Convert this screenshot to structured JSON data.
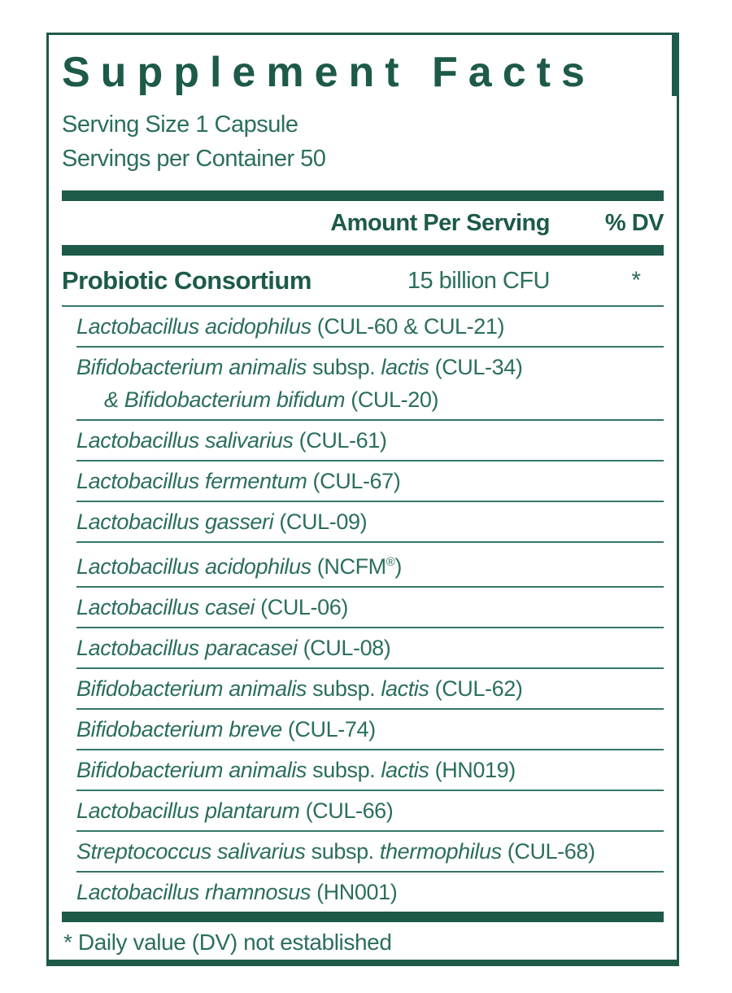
{
  "colors": {
    "deep_green": "#1d5a4a",
    "body_green": "#2b6e5e",
    "rule_green": "#35766a",
    "background": "#ffffff"
  },
  "label": {
    "title": "Supplement Facts",
    "serving_size": "Serving Size 1 Capsule",
    "servings_per_container": "Servings per Container 50",
    "columns": {
      "amount": "Amount Per Serving",
      "dv": "% DV"
    },
    "main_row": {
      "name": "Probiotic Consortium",
      "amount": "15 billion CFU",
      "dv": "*"
    },
    "ingredients": [
      {
        "lines": [
          [
            {
              "t": "Lactobacillus acidophilus",
              "s": "i"
            },
            {
              "t": " (CUL-60 & CUL-21)",
              "s": "r"
            }
          ]
        ]
      },
      {
        "lines": [
          [
            {
              "t": "Bifidobacterium animalis",
              "s": "i"
            },
            {
              "t": " subsp. ",
              "s": "r"
            },
            {
              "t": "lactis",
              "s": "i"
            },
            {
              "t": " (CUL-34)",
              "s": "r"
            }
          ],
          [
            {
              "t": "& Bifidobacterium bifidum",
              "s": "i"
            },
            {
              "t": " (CUL-20)",
              "s": "r"
            }
          ]
        ]
      },
      {
        "lines": [
          [
            {
              "t": "Lactobacillus salivarius",
              "s": "i"
            },
            {
              "t": " (CUL-61)",
              "s": "r"
            }
          ]
        ]
      },
      {
        "lines": [
          [
            {
              "t": "Lactobacillus fermentum",
              "s": "i"
            },
            {
              "t": " (CUL-67)",
              "s": "r"
            }
          ]
        ]
      },
      {
        "lines": [
          [
            {
              "t": "Lactobacillus gasseri",
              "s": "i"
            },
            {
              "t": " (CUL-09)",
              "s": "r"
            }
          ]
        ]
      },
      {
        "lines": [
          [
            {
              "t": "Lactobacillus acidophilus",
              "s": "i"
            },
            {
              "t": " (NCFM",
              "s": "r"
            },
            {
              "t": "®",
              "s": "sup"
            },
            {
              "t": ")",
              "s": "r"
            }
          ]
        ]
      },
      {
        "lines": [
          [
            {
              "t": "Lactobacillus casei",
              "s": "i"
            },
            {
              "t": " (CUL-06)",
              "s": "r"
            }
          ]
        ]
      },
      {
        "lines": [
          [
            {
              "t": "Lactobacillus paracasei",
              "s": "i"
            },
            {
              "t": " (CUL-08)",
              "s": "r"
            }
          ]
        ]
      },
      {
        "lines": [
          [
            {
              "t": "Bifidobacterium animalis",
              "s": "i"
            },
            {
              "t": " subsp. ",
              "s": "r"
            },
            {
              "t": "lactis",
              "s": "i"
            },
            {
              "t": " (CUL-62)",
              "s": "r"
            }
          ]
        ]
      },
      {
        "lines": [
          [
            {
              "t": "Bifidobacterium breve",
              "s": "i"
            },
            {
              "t": " (CUL-74)",
              "s": "r"
            }
          ]
        ]
      },
      {
        "lines": [
          [
            {
              "t": "Bifidobacterium animalis",
              "s": "i"
            },
            {
              "t": " subsp. ",
              "s": "r"
            },
            {
              "t": "lactis",
              "s": "i"
            },
            {
              "t": " (HN019)",
              "s": "r"
            }
          ]
        ]
      },
      {
        "lines": [
          [
            {
              "t": "Lactobacillus plantarum",
              "s": "i"
            },
            {
              "t": " (CUL-66)",
              "s": "r"
            }
          ]
        ]
      },
      {
        "lines": [
          [
            {
              "t": "Streptococcus salivarius",
              "s": "i"
            },
            {
              "t": " subsp. ",
              "s": "r"
            },
            {
              "t": "thermophilus",
              "s": "i"
            },
            {
              "t": " (CUL-68)",
              "s": "r"
            }
          ]
        ]
      },
      {
        "lines": [
          [
            {
              "t": "Lactobacillus rhamnosus",
              "s": "i"
            },
            {
              "t": " (HN001)",
              "s": "r"
            }
          ]
        ]
      }
    ],
    "footnote": "* Daily value (DV) not established"
  }
}
